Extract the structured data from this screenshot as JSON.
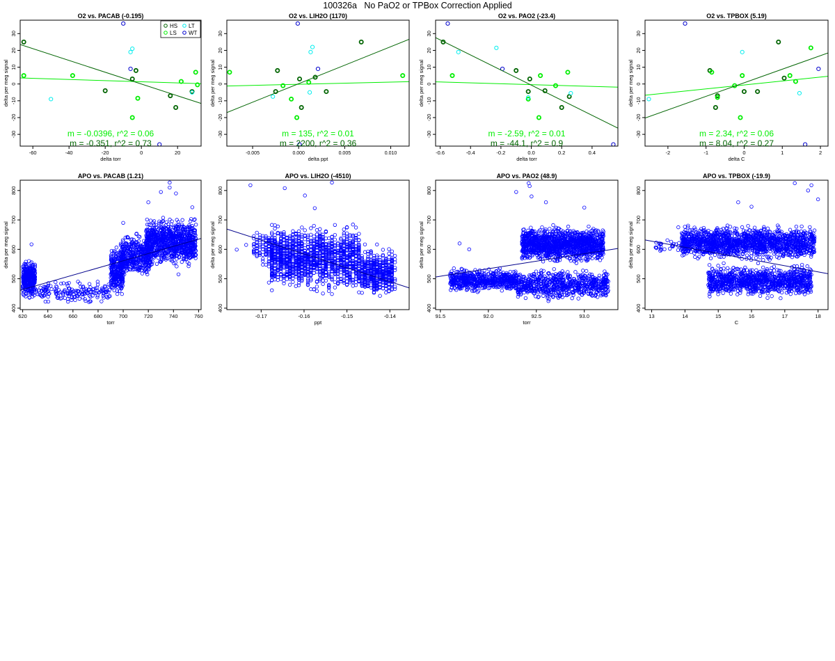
{
  "page": {
    "title": "100326a   No PaO2 or TPBox Correction Applied"
  },
  "colors": {
    "HS": "#006400",
    "LS": "#00ee00",
    "LT": "#00eeee",
    "WT": "#0000cd",
    "apo": "#0000ff",
    "axis": "#000000"
  },
  "legend": [
    {
      "label": "HS",
      "key": "HS"
    },
    {
      "label": "LT",
      "key": "LT"
    },
    {
      "label": "LS",
      "key": "LS"
    },
    {
      "label": "WT",
      "key": "WT"
    }
  ],
  "chart_data": [
    {
      "type": "scatter",
      "title": "O2 vs. PACAB (-0.195)",
      "xlabel": "delta torr",
      "ylabel": "delta per meg signal",
      "xlim": [
        -67,
        33
      ],
      "ylim": [
        -37,
        38
      ],
      "xticks": [
        -60,
        -40,
        -20,
        0,
        20
      ],
      "yticks": [
        -30,
        -20,
        -10,
        0,
        10,
        20,
        30
      ],
      "legend_position": "top-right",
      "annotations": [
        {
          "text": "m = -0.0396, r^2 = 0.06",
          "key": "LS"
        },
        {
          "text": "m = -0.351, r^2 = 0.73",
          "key": "HS"
        }
      ],
      "fit_lines": [
        {
          "key": "LS",
          "p1": [
            -67,
            3.6
          ],
          "p2": [
            33,
            0.2
          ]
        },
        {
          "key": "HS",
          "p1": [
            -67,
            23.5
          ],
          "p2": [
            33,
            -11.6
          ]
        }
      ],
      "series": [
        {
          "name": "HS",
          "key": "HS",
          "points": [
            [
              -65,
              25
            ],
            [
              -20,
              -4
            ],
            [
              -3,
              8
            ],
            [
              -5,
              3
            ],
            [
              16,
              -7
            ],
            [
              19,
              -14
            ],
            [
              28,
              -4.5
            ]
          ]
        },
        {
          "name": "LS",
          "key": "LS",
          "points": [
            [
              -65,
              5
            ],
            [
              -38,
              5
            ],
            [
              -5,
              -20
            ],
            [
              -2,
              -8.5
            ],
            [
              22,
              1.5
            ],
            [
              30,
              7
            ],
            [
              31,
              -0.5
            ]
          ]
        },
        {
          "name": "LT",
          "key": "LT",
          "points": [
            [
              -50,
              -9
            ],
            [
              -6,
              19
            ],
            [
              -5,
              21
            ],
            [
              28,
              -5
            ]
          ]
        },
        {
          "name": "WT",
          "key": "WT",
          "points": [
            [
              -10,
              36
            ],
            [
              -6,
              9
            ],
            [
              10,
              -36
            ]
          ]
        }
      ]
    },
    {
      "type": "scatter",
      "title": "O2 vs. LIH2O (1170)",
      "xlabel": "delta ppt",
      "ylabel": "delta per meg signal",
      "xlim": [
        -0.0078,
        0.012
      ],
      "ylim": [
        -37,
        38
      ],
      "xticks": [
        -0.005,
        0.0,
        0.005,
        0.01
      ],
      "yticks": [
        -30,
        -20,
        -10,
        0,
        10,
        20,
        30
      ],
      "annotations": [
        {
          "text": "m = 135, r^2 = 0.01",
          "key": "LS"
        },
        {
          "text": "m = 2200, r^2 = 0.36",
          "key": "HS"
        }
      ],
      "fit_lines": [
        {
          "key": "LS",
          "p1": [
            -0.0078,
            -1.2
          ],
          "p2": [
            0.012,
            1.4
          ]
        },
        {
          "key": "HS",
          "p1": [
            -0.0078,
            -17.0
          ],
          "p2": [
            0.012,
            26.6
          ]
        }
      ],
      "series": [
        {
          "name": "HS",
          "key": "HS",
          "points": [
            [
              -0.0025,
              -4.5
            ],
            [
              -0.0023,
              8
            ],
            [
              0.0001,
              3
            ],
            [
              0.0003,
              -14
            ],
            [
              0.0018,
              4
            ],
            [
              0.003,
              -4.5
            ],
            [
              0.0068,
              25
            ]
          ]
        },
        {
          "name": "LS",
          "key": "LS",
          "points": [
            [
              -0.0075,
              7
            ],
            [
              -0.0017,
              -1
            ],
            [
              -0.0008,
              -9
            ],
            [
              -0.0002,
              -20
            ],
            [
              0.0011,
              1
            ],
            [
              0.0113,
              5
            ]
          ]
        },
        {
          "name": "LT",
          "key": "LT",
          "points": [
            [
              -0.0028,
              -7.5
            ],
            [
              0.0012,
              -5
            ],
            [
              0.0013,
              19
            ],
            [
              0.0015,
              22
            ]
          ]
        },
        {
          "name": "WT",
          "key": "WT",
          "points": [
            [
              -0.0001,
              36
            ],
            [
              0.0021,
              9
            ],
            [
              0.0001,
              -36
            ]
          ]
        }
      ]
    },
    {
      "type": "scatter",
      "title": "O2 vs. PAO2 (-23.4)",
      "xlabel": "delta torr",
      "ylabel": "delta per meg signal",
      "xlim": [
        -0.63,
        0.57
      ],
      "ylim": [
        -37,
        38
      ],
      "xticks": [
        -0.6,
        -0.4,
        -0.2,
        0.0,
        0.2,
        0.4
      ],
      "yticks": [
        -30,
        -20,
        -10,
        0,
        10,
        20,
        30
      ],
      "annotations": [
        {
          "text": "m = -2.59, r^2 = 0.01",
          "key": "LS"
        },
        {
          "text": "m = -44.1, r^2 = 0.9",
          "key": "HS"
        }
      ],
      "fit_lines": [
        {
          "key": "LS",
          "p1": [
            -0.63,
            1.3
          ],
          "p2": [
            0.57,
            -1.9
          ]
        },
        {
          "key": "HS",
          "p1": [
            -0.63,
            27.6
          ],
          "p2": [
            0.57,
            -26.3
          ]
        }
      ],
      "series": [
        {
          "name": "HS",
          "key": "HS",
          "points": [
            [
              -0.58,
              25
            ],
            [
              -0.1,
              8
            ],
            [
              -0.02,
              -4.5
            ],
            [
              -0.01,
              3
            ],
            [
              0.09,
              -4
            ],
            [
              0.2,
              -14
            ],
            [
              0.25,
              -7.5
            ]
          ]
        },
        {
          "name": "LS",
          "key": "LS",
          "points": [
            [
              -0.52,
              5
            ],
            [
              -0.02,
              -9
            ],
            [
              0.05,
              -20
            ],
            [
              0.06,
              5
            ],
            [
              0.16,
              -1
            ],
            [
              0.24,
              7
            ]
          ]
        },
        {
          "name": "LT",
          "key": "LT",
          "points": [
            [
              -0.48,
              19
            ],
            [
              -0.23,
              21.5
            ],
            [
              -0.02,
              -8
            ],
            [
              0.26,
              -5.5
            ]
          ]
        },
        {
          "name": "WT",
          "key": "WT",
          "points": [
            [
              -0.55,
              36
            ],
            [
              -0.19,
              9
            ],
            [
              0.54,
              -36
            ]
          ]
        }
      ]
    },
    {
      "type": "scatter",
      "title": "O2 vs. TPBOX (5.19)",
      "xlabel": "delta C",
      "ylabel": "delta per meg signal",
      "xlim": [
        -2.6,
        2.2
      ],
      "ylim": [
        -37,
        38
      ],
      "xticks": [
        -2,
        -1,
        0,
        1,
        2
      ],
      "yticks": [
        -30,
        -20,
        -10,
        0,
        10,
        20,
        30
      ],
      "annotations": [
        {
          "text": "m = 2.34, r^2 = 0.06",
          "key": "LS"
        },
        {
          "text": "m = 8.04, r^2 = 0.27",
          "key": "HS"
        }
      ],
      "fit_lines": [
        {
          "key": "LS",
          "p1": [
            -2.6,
            -6.7
          ],
          "p2": [
            2.2,
            4.6
          ]
        },
        {
          "key": "HS",
          "p1": [
            -2.6,
            -20.3
          ],
          "p2": [
            2.2,
            18.5
          ]
        }
      ],
      "series": [
        {
          "name": "HS",
          "key": "HS",
          "points": [
            [
              -0.9,
              8
            ],
            [
              -0.75,
              -14
            ],
            [
              -0.7,
              -7
            ],
            [
              0,
              -4.5
            ],
            [
              0.35,
              -4.5
            ],
            [
              0.9,
              25
            ],
            [
              1.05,
              3.5
            ]
          ]
        },
        {
          "name": "LS",
          "key": "LS",
          "points": [
            [
              -0.85,
              7
            ],
            [
              -0.7,
              -8
            ],
            [
              -0.25,
              -1
            ],
            [
              -0.1,
              -20
            ],
            [
              -0.05,
              5
            ],
            [
              1.2,
              5
            ],
            [
              1.35,
              1.5
            ],
            [
              1.75,
              21.5
            ]
          ]
        },
        {
          "name": "LT",
          "key": "LT",
          "points": [
            [
              -2.5,
              -9
            ],
            [
              -0.05,
              19
            ],
            [
              1.45,
              -5.5
            ]
          ]
        },
        {
          "name": "WT",
          "key": "WT",
          "points": [
            [
              -1.55,
              36
            ],
            [
              1.95,
              9
            ],
            [
              1.6,
              -36
            ]
          ]
        }
      ]
    },
    {
      "type": "scatter",
      "title": "APO vs. PACAB (1.21)",
      "xlabel": "torr",
      "ylabel": "delta per meg signal",
      "xlim": [
        618,
        762
      ],
      "ylim": [
        395,
        835
      ],
      "xticks": [
        620,
        640,
        660,
        680,
        700,
        720,
        740,
        760
      ],
      "yticks": [
        400,
        500,
        600,
        700,
        800
      ],
      "fit_lines": [
        {
          "key": "apo",
          "p1": [
            618,
            461
          ],
          "p2": [
            762,
            637
          ]
        }
      ],
      "clusters": [
        {
          "x": [
            620,
            630
          ],
          "y": [
            425,
            575
          ],
          "n": 330
        },
        {
          "x": [
            630,
            690
          ],
          "y": [
            410,
            500
          ],
          "n": 170
        },
        {
          "x": [
            690,
            700
          ],
          "y": [
            420,
            620
          ],
          "n": 260
        },
        {
          "x": [
            698,
            722
          ],
          "y": [
            490,
            665
          ],
          "n": 420
        },
        {
          "x": [
            718,
            758
          ],
          "y": [
            530,
            720
          ],
          "n": 900
        }
      ],
      "outliers": [
        [
          737,
          827
        ],
        [
          737,
          810
        ],
        [
          730,
          795
        ],
        [
          742,
          790
        ],
        [
          720,
          760
        ],
        [
          755,
          743
        ],
        [
          627,
          617
        ],
        [
          700,
          690
        ],
        [
          744,
          515
        ],
        [
          689,
          462
        ]
      ]
    },
    {
      "type": "scatter",
      "title": "APO vs. LIH2O (-4510)",
      "xlabel": "ppt",
      "ylabel": "delta per meg signal",
      "xlim": [
        -0.178,
        -0.1355
      ],
      "ylim": [
        395,
        835
      ],
      "xticks": [
        -0.17,
        -0.16,
        -0.15,
        -0.14
      ],
      "yticks": [
        400,
        500,
        600,
        700,
        800
      ],
      "fit_lines": [
        {
          "key": "apo",
          "p1": [
            -0.178,
            669
          ],
          "p2": [
            -0.1355,
            469
          ]
        }
      ],
      "columns": {
        "x_start": -0.1675,
        "x_end": -0.1385,
        "step": 0.0007
      },
      "clusters": [
        {
          "x": [
            -0.168,
            -0.147
          ],
          "y": [
            440,
            700
          ],
          "n": 1400
        },
        {
          "x": [
            -0.147,
            -0.139
          ],
          "y": [
            425,
            620
          ],
          "n": 500
        },
        {
          "x": [
            -0.172,
            -0.165
          ],
          "y": [
            530,
            680
          ],
          "n": 120
        }
      ],
      "outliers": [
        [
          -0.1725,
          818
        ],
        [
          -0.1645,
          808
        ],
        [
          -0.1535,
          827
        ],
        [
          -0.1598,
          783
        ],
        [
          -0.1575,
          740
        ],
        [
          -0.1757,
          599
        ],
        [
          -0.1735,
          615
        ]
      ]
    },
    {
      "type": "scatter",
      "title": "APO vs. PAO2 (48.9)",
      "xlabel": "torr",
      "ylabel": "delta per meg signal",
      "xlim": [
        91.45,
        93.35
      ],
      "ylim": [
        395,
        835
      ],
      "xticks": [
        91.5,
        92.0,
        92.5,
        93.0
      ],
      "yticks": [
        400,
        500,
        600,
        700,
        800
      ],
      "fit_lines": [
        {
          "key": "apo",
          "p1": [
            91.45,
            506
          ],
          "p2": [
            93.35,
            603
          ]
        }
      ],
      "clusters": [
        {
          "x": [
            91.6,
            92.3
          ],
          "y": [
            450,
            540
          ],
          "n": 600
        },
        {
          "x": [
            92.3,
            93.25
          ],
          "y": [
            420,
            540
          ],
          "n": 700
        },
        {
          "x": [
            92.35,
            93.2
          ],
          "y": [
            545,
            690
          ],
          "n": 1300
        }
      ],
      "outliers": [
        [
          92.42,
          825
        ],
        [
          92.43,
          815
        ],
        [
          92.29,
          795
        ],
        [
          92.45,
          780
        ],
        [
          92.6,
          760
        ],
        [
          93.0,
          742
        ],
        [
          91.8,
          600
        ],
        [
          91.7,
          620
        ]
      ]
    },
    {
      "type": "scatter",
      "title": "APO vs. TPBOX (-19.9)",
      "xlabel": "C",
      "ylabel": "delta per meg signal",
      "xlim": [
        12.8,
        18.3
      ],
      "ylim": [
        395,
        835
      ],
      "xticks": [
        13,
        14,
        15,
        16,
        17,
        18
      ],
      "yticks": [
        400,
        500,
        600,
        700,
        800
      ],
      "fit_lines": [
        {
          "key": "apo",
          "p1": [
            12.8,
            632
          ],
          "p2": [
            18.3,
            517
          ]
        }
      ],
      "clusters": [
        {
          "x": [
            13.9,
            17.9
          ],
          "y": [
            555,
            690
          ],
          "n": 1500
        },
        {
          "x": [
            14.7,
            17.8
          ],
          "y": [
            430,
            555
          ],
          "n": 1000
        },
        {
          "x": [
            13.1,
            14.2
          ],
          "y": [
            580,
            640
          ],
          "n": 40
        }
      ],
      "outliers": [
        [
          17.3,
          825
        ],
        [
          17.8,
          818
        ],
        [
          17.7,
          800
        ],
        [
          16.0,
          745
        ],
        [
          15.6,
          760
        ],
        [
          13.8,
          675
        ],
        [
          17.5,
          640
        ],
        [
          18.0,
          770
        ]
      ]
    }
  ]
}
